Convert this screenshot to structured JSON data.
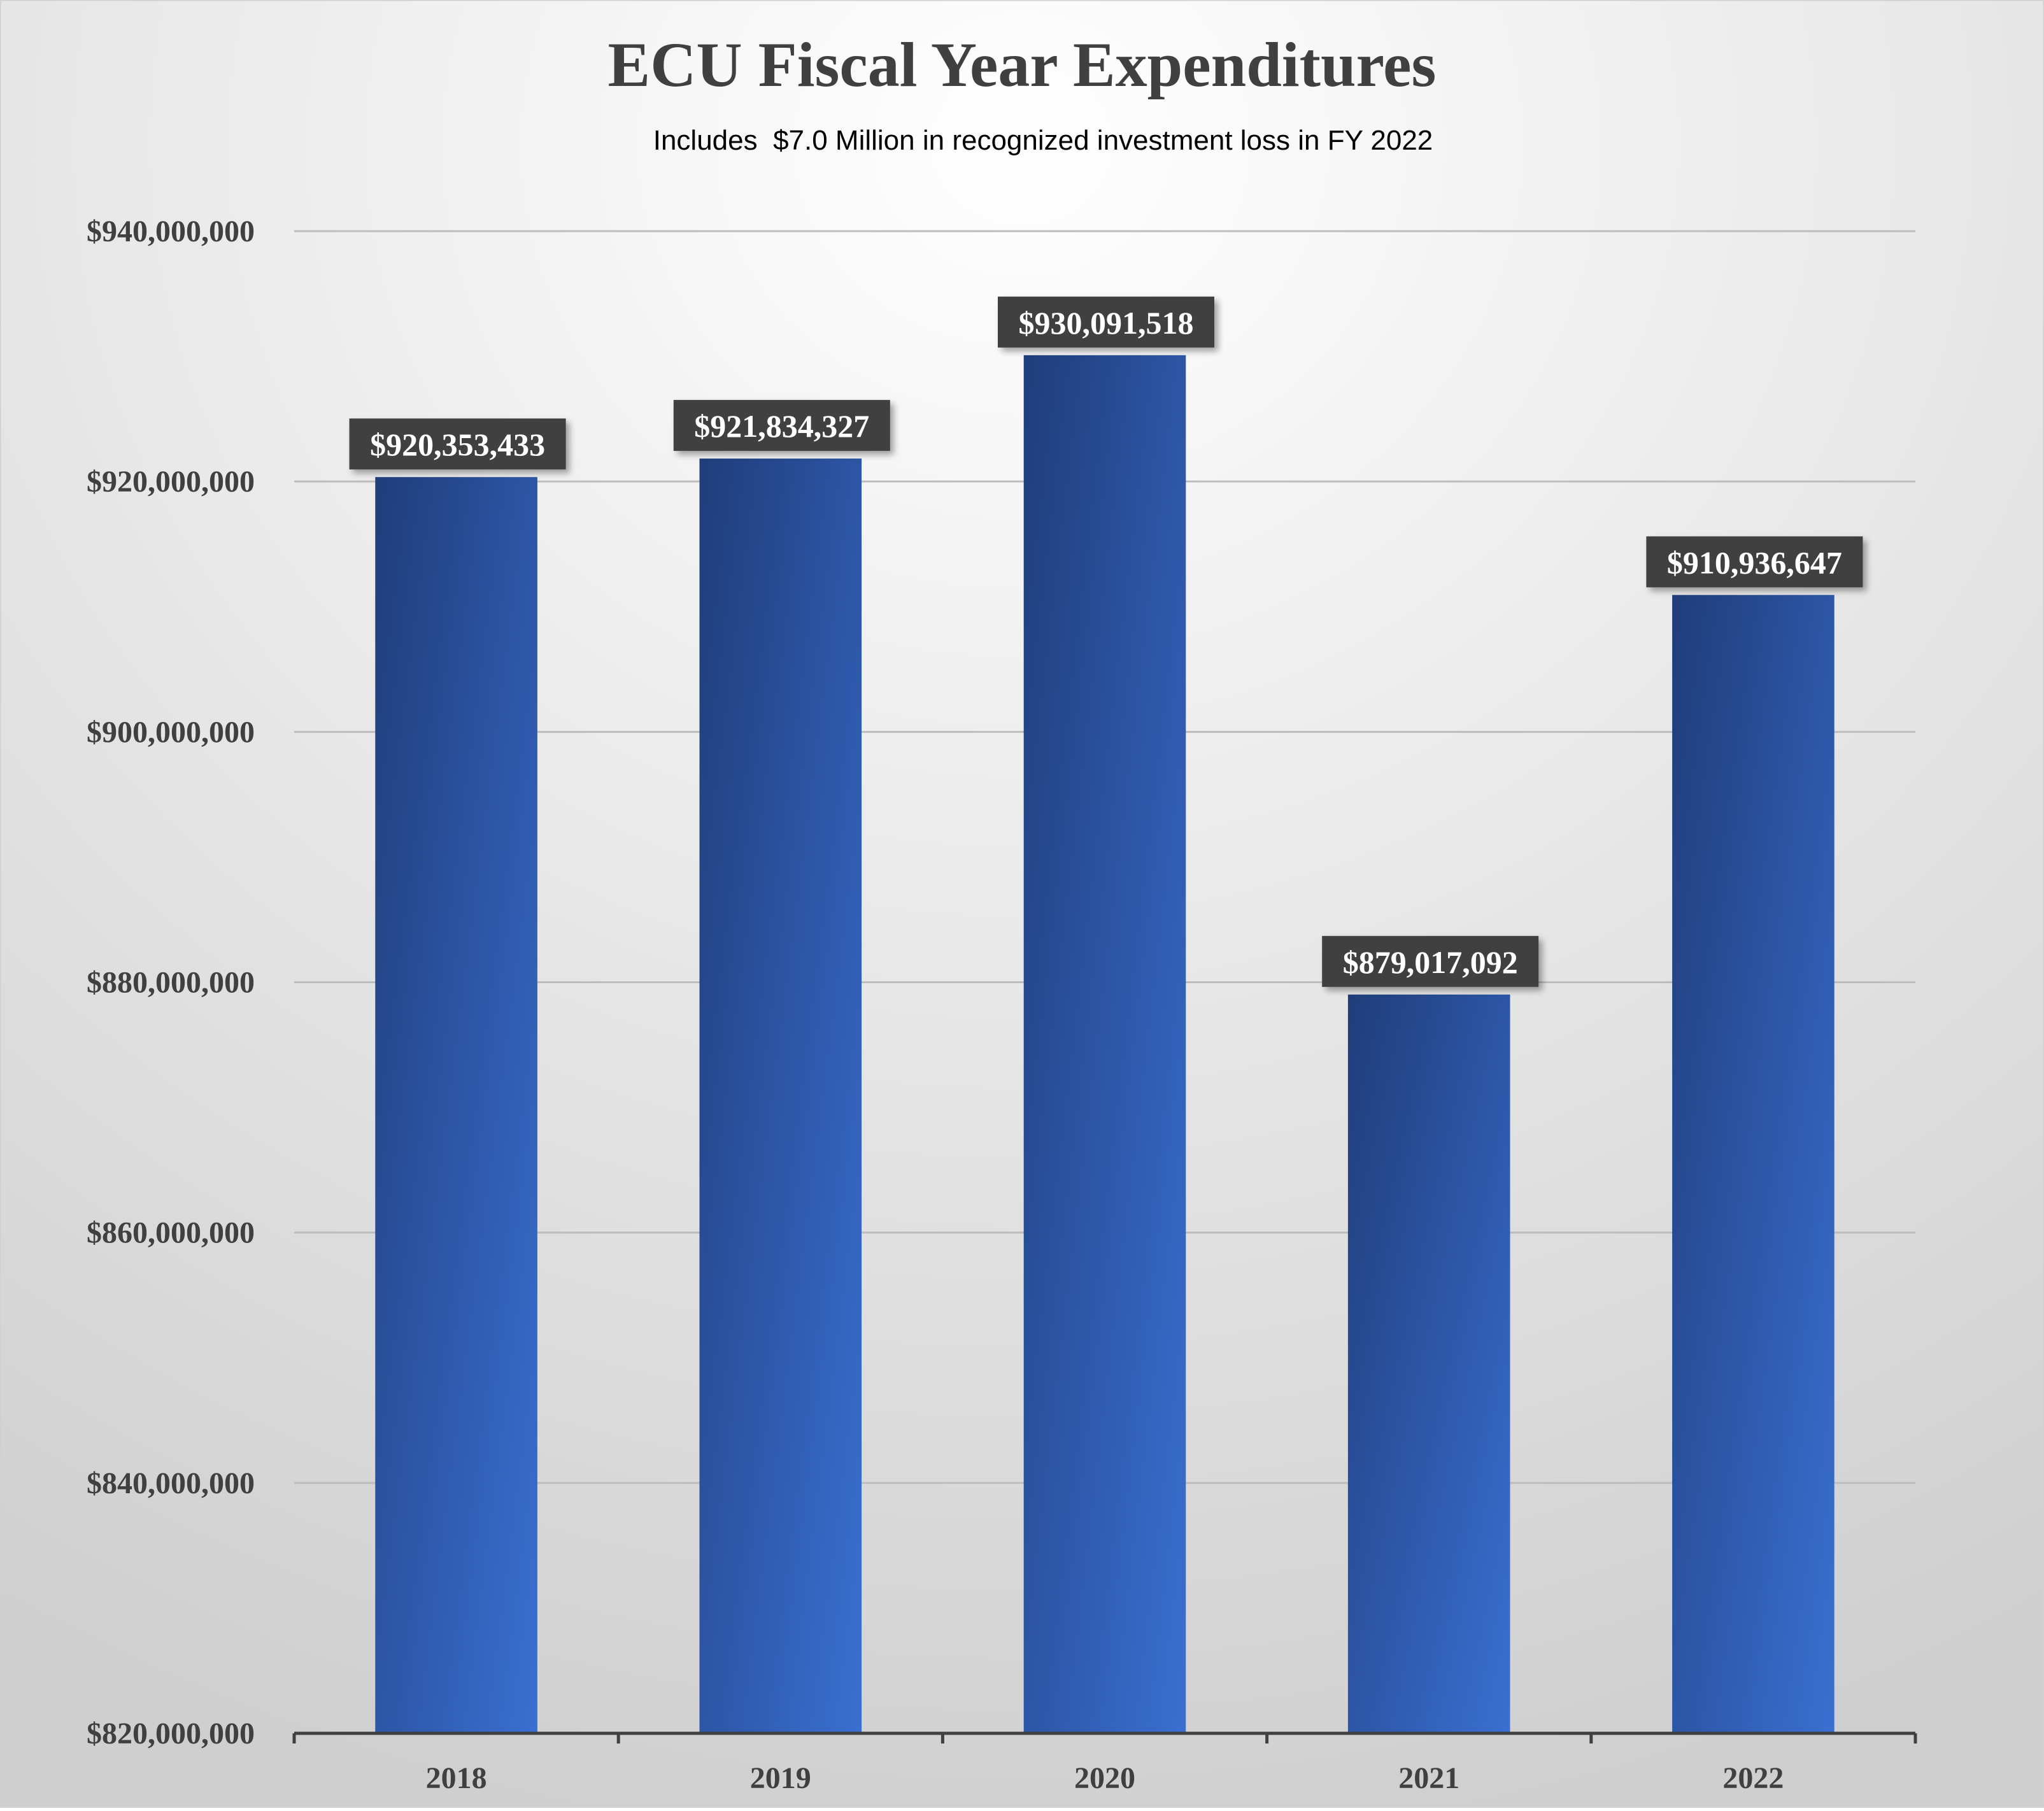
{
  "chart_data": {
    "type": "bar",
    "title": "ECU Fiscal Year Expenditures",
    "subtitle": "Includes  $7.0 Million in recognized investment loss in FY 2022",
    "xlabel": "",
    "ylabel": "",
    "categories": [
      "2018",
      "2019",
      "2020",
      "2021",
      "2022"
    ],
    "values": [
      920353433,
      921834327,
      930091518,
      879017092,
      910936647
    ],
    "data_labels": [
      "$920,353,433",
      "$921,834,327",
      "$930,091,518",
      "$879,017,092",
      "$910,936,647"
    ],
    "ylim": [
      820000000,
      940000000
    ],
    "yticks": [
      820000000,
      840000000,
      860000000,
      880000000,
      900000000,
      920000000,
      940000000
    ],
    "ytick_labels": [
      "$820,000,000",
      "$840,000,000",
      "$860,000,000",
      "$880,000,000",
      "$900,000,000",
      "$920,000,000",
      "$940,000,000"
    ],
    "grid": true,
    "legend": "none",
    "colors": {
      "bar_dark": "#1f3d7a",
      "bar_light": "#3a6fd1",
      "label_box": "#3f3f3f",
      "label_text": "#ffffff",
      "title": "#404040",
      "axis_text": "#404040",
      "gridline": "#bdbdbd",
      "axis_line": "#404040",
      "background_top": "#ffffff",
      "background_bottom": "#cfcfcf"
    }
  }
}
